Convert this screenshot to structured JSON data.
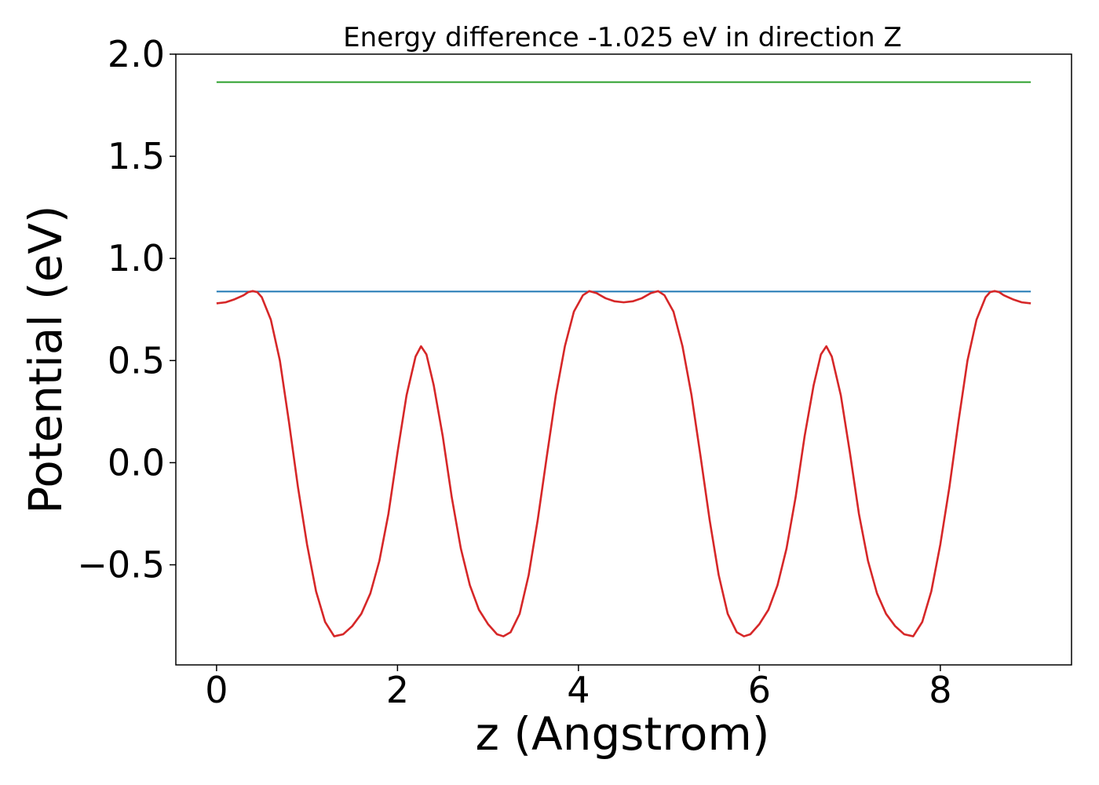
{
  "chart_data": {
    "type": "line",
    "title": "Energy difference -1.025 eV in direction Z",
    "xlabel": "z (Angstrom)",
    "ylabel": "Potential (eV)",
    "xlim": [
      -0.45,
      9.45
    ],
    "ylim": [
      -0.99,
      2.0
    ],
    "x_ticks": [
      0,
      2,
      4,
      6,
      8
    ],
    "x_tick_labels": [
      "0",
      "2",
      "4",
      "6",
      "8"
    ],
    "y_ticks": [
      -0.5,
      0.0,
      0.5,
      1.0,
      1.5,
      2.0
    ],
    "y_tick_labels": [
      "−0.5",
      "0.0",
      "0.5",
      "1.0",
      "1.5",
      "2.0"
    ],
    "grid": false,
    "legend": "none",
    "hlines": [
      {
        "y": 1.863,
        "color": "#2ca02c",
        "x_range": [
          0,
          9
        ]
      },
      {
        "y": 0.838,
        "color": "#1f77b4",
        "x_range": [
          0,
          9
        ]
      }
    ],
    "series": [
      {
        "color": "#d62728",
        "points": [
          [
            0.0,
            0.78
          ],
          [
            0.1,
            0.785
          ],
          [
            0.2,
            0.8
          ],
          [
            0.3,
            0.82
          ],
          [
            0.35,
            0.835
          ],
          [
            0.4,
            0.84
          ],
          [
            0.45,
            0.835
          ],
          [
            0.5,
            0.81
          ],
          [
            0.6,
            0.7
          ],
          [
            0.7,
            0.5
          ],
          [
            0.8,
            0.2
          ],
          [
            0.9,
            -0.12
          ],
          [
            1.0,
            -0.4
          ],
          [
            1.1,
            -0.63
          ],
          [
            1.2,
            -0.78
          ],
          [
            1.3,
            -0.85
          ],
          [
            1.4,
            -0.84
          ],
          [
            1.5,
            -0.8
          ],
          [
            1.6,
            -0.74
          ],
          [
            1.7,
            -0.64
          ],
          [
            1.8,
            -0.48
          ],
          [
            1.9,
            -0.25
          ],
          [
            2.0,
            0.05
          ],
          [
            2.1,
            0.33
          ],
          [
            2.2,
            0.52
          ],
          [
            2.26,
            0.57
          ],
          [
            2.32,
            0.53
          ],
          [
            2.4,
            0.38
          ],
          [
            2.5,
            0.13
          ],
          [
            2.6,
            -0.17
          ],
          [
            2.7,
            -0.42
          ],
          [
            2.8,
            -0.6
          ],
          [
            2.9,
            -0.72
          ],
          [
            3.0,
            -0.79
          ],
          [
            3.1,
            -0.84
          ],
          [
            3.17,
            -0.85
          ],
          [
            3.25,
            -0.83
          ],
          [
            3.35,
            -0.74
          ],
          [
            3.45,
            -0.55
          ],
          [
            3.55,
            -0.28
          ],
          [
            3.65,
            0.03
          ],
          [
            3.75,
            0.33
          ],
          [
            3.85,
            0.57
          ],
          [
            3.95,
            0.74
          ],
          [
            4.05,
            0.82
          ],
          [
            4.12,
            0.84
          ],
          [
            4.2,
            0.83
          ],
          [
            4.3,
            0.805
          ],
          [
            4.4,
            0.79
          ],
          [
            4.5,
            0.785
          ],
          [
            4.6,
            0.79
          ],
          [
            4.7,
            0.805
          ],
          [
            4.8,
            0.83
          ],
          [
            4.88,
            0.84
          ],
          [
            4.95,
            0.82
          ],
          [
            5.05,
            0.74
          ],
          [
            5.15,
            0.57
          ],
          [
            5.25,
            0.33
          ],
          [
            5.35,
            0.03
          ],
          [
            5.45,
            -0.28
          ],
          [
            5.55,
            -0.55
          ],
          [
            5.65,
            -0.74
          ],
          [
            5.75,
            -0.83
          ],
          [
            5.83,
            -0.85
          ],
          [
            5.9,
            -0.84
          ],
          [
            6.0,
            -0.79
          ],
          [
            6.1,
            -0.72
          ],
          [
            6.2,
            -0.6
          ],
          [
            6.3,
            -0.42
          ],
          [
            6.4,
            -0.17
          ],
          [
            6.5,
            0.13
          ],
          [
            6.6,
            0.38
          ],
          [
            6.68,
            0.53
          ],
          [
            6.74,
            0.57
          ],
          [
            6.8,
            0.52
          ],
          [
            6.9,
            0.33
          ],
          [
            7.0,
            0.05
          ],
          [
            7.1,
            -0.25
          ],
          [
            7.2,
            -0.48
          ],
          [
            7.3,
            -0.64
          ],
          [
            7.4,
            -0.74
          ],
          [
            7.5,
            -0.8
          ],
          [
            7.6,
            -0.84
          ],
          [
            7.7,
            -0.85
          ],
          [
            7.8,
            -0.78
          ],
          [
            7.9,
            -0.63
          ],
          [
            8.0,
            -0.4
          ],
          [
            8.1,
            -0.12
          ],
          [
            8.2,
            0.2
          ],
          [
            8.3,
            0.5
          ],
          [
            8.4,
            0.7
          ],
          [
            8.5,
            0.81
          ],
          [
            8.55,
            0.835
          ],
          [
            8.6,
            0.84
          ],
          [
            8.65,
            0.835
          ],
          [
            8.7,
            0.82
          ],
          [
            8.8,
            0.8
          ],
          [
            8.9,
            0.785
          ],
          [
            9.0,
            0.78
          ]
        ]
      }
    ]
  }
}
